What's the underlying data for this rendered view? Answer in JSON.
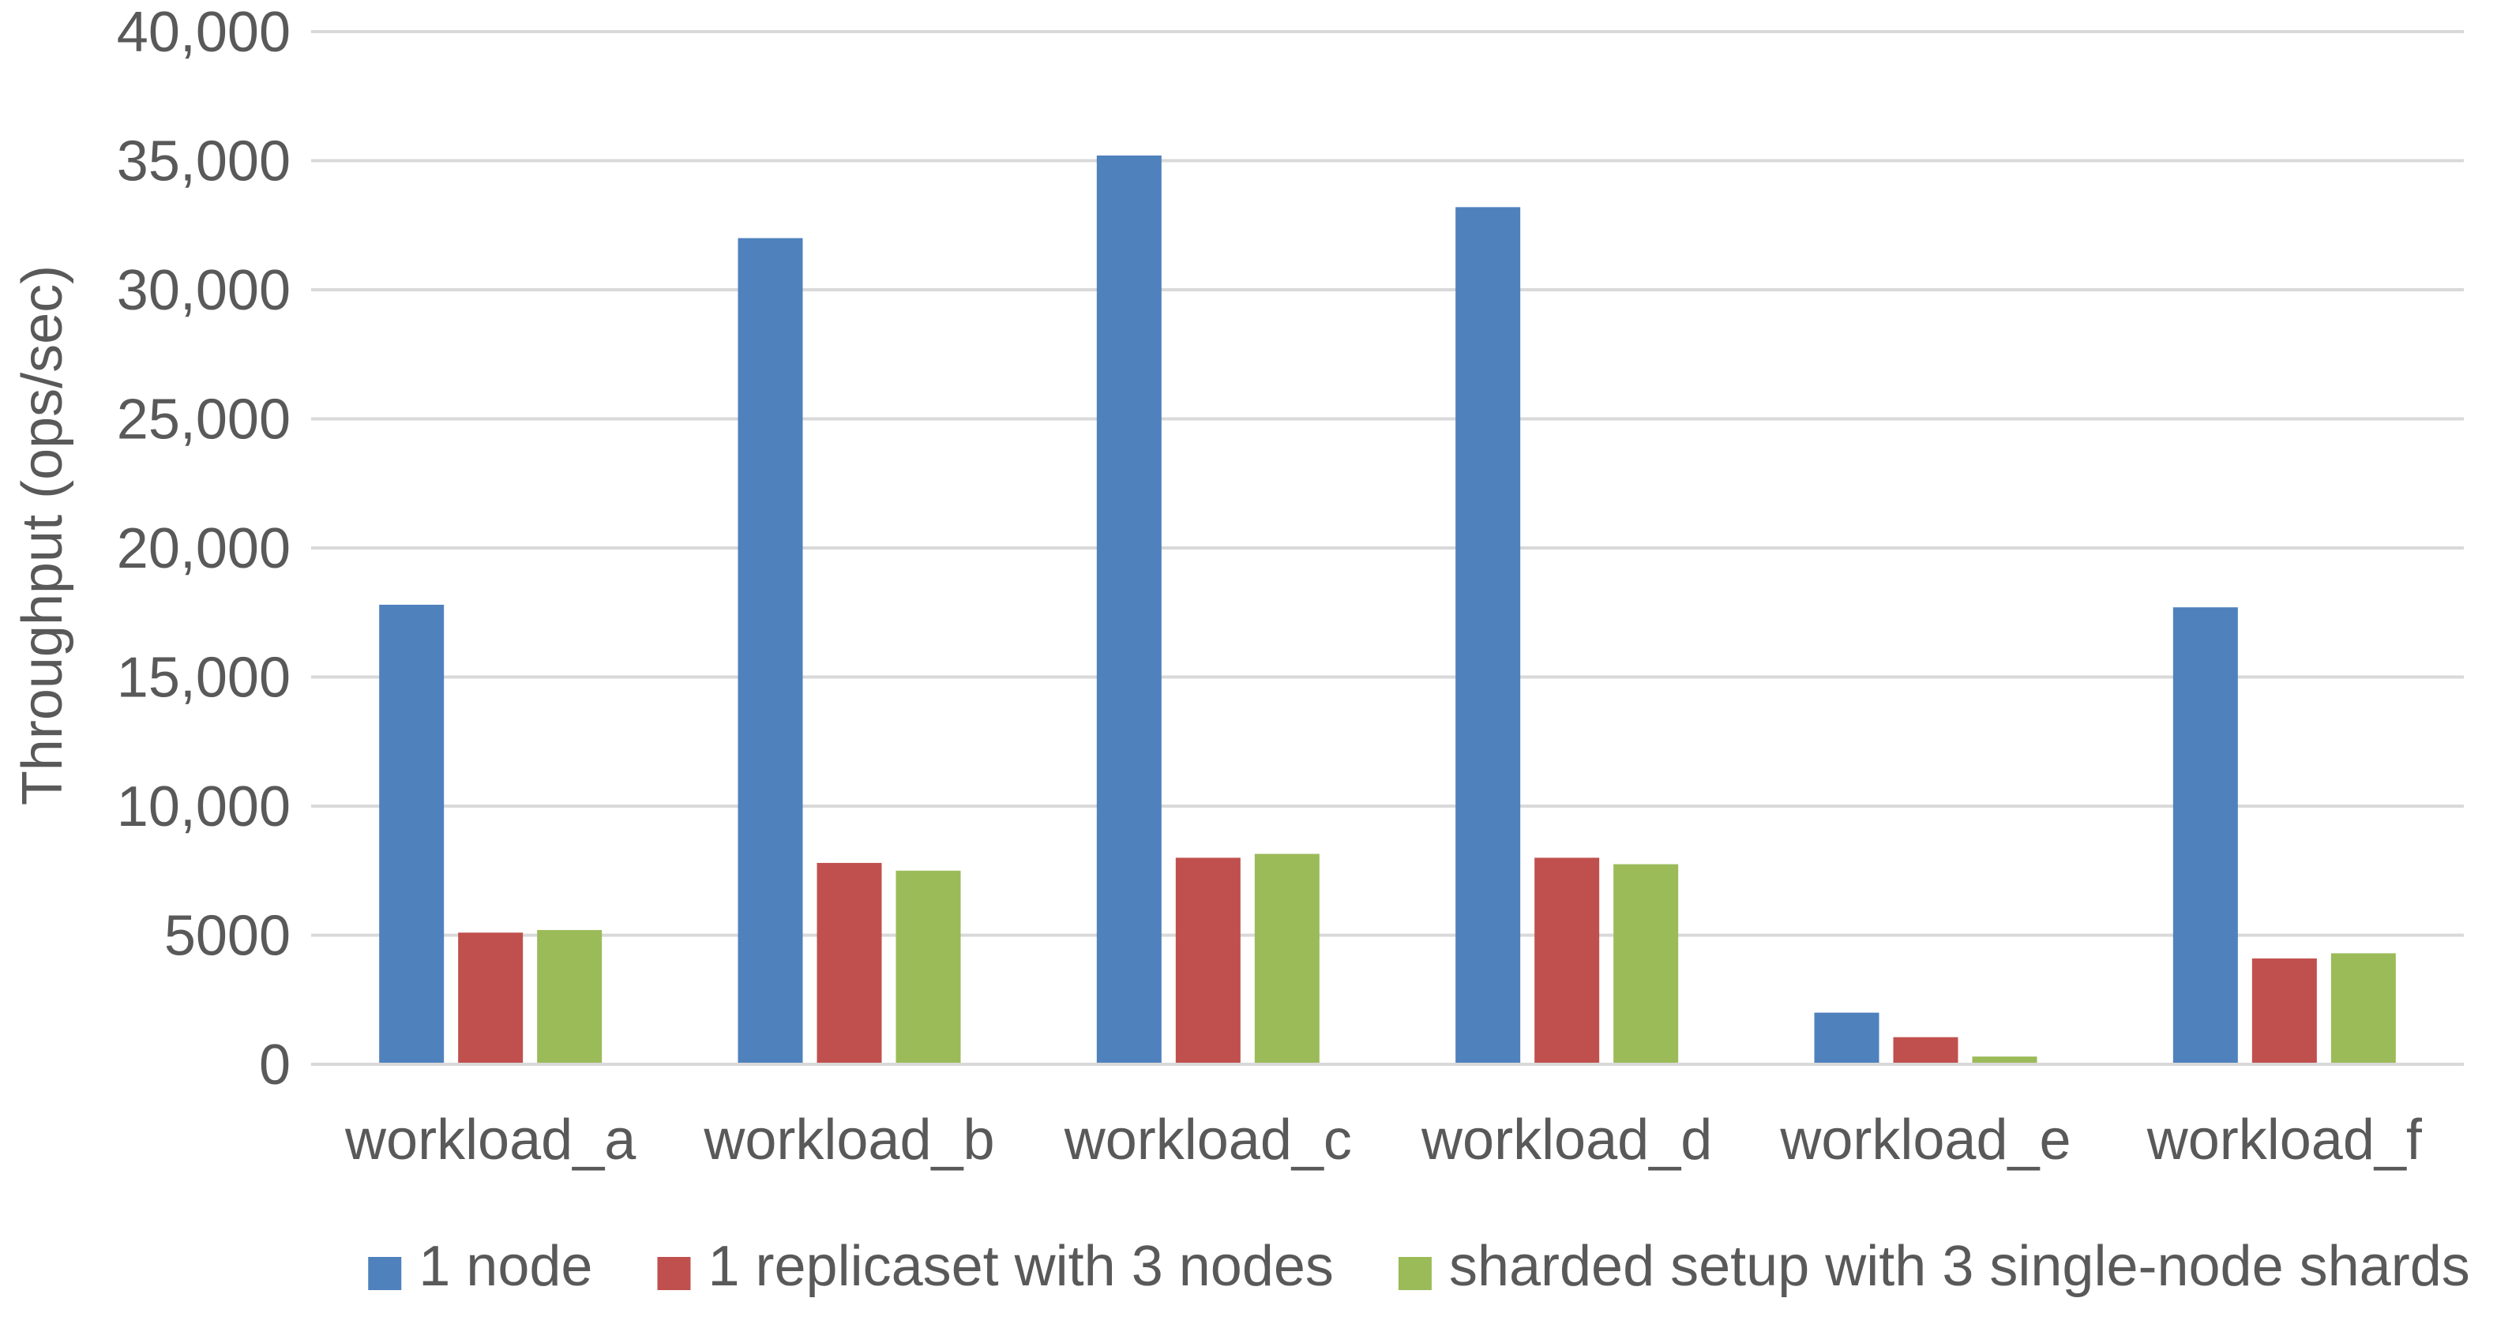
{
  "chart_data": {
    "type": "bar",
    "title": "",
    "xlabel": "",
    "ylabel": "Throughput (ops/sec)",
    "ylim": [
      0,
      40000
    ],
    "yticks": [
      0,
      5000,
      10000,
      15000,
      20000,
      25000,
      30000,
      35000,
      40000
    ],
    "ytick_labels": [
      "0",
      "5000",
      "10,000",
      "15,000",
      "20,000",
      "25,000",
      "30,000",
      "35,000",
      "40,000"
    ],
    "grid": true,
    "legend_position": "bottom",
    "categories": [
      "workload_a",
      "workload_b",
      "workload_c",
      "workload_d",
      "workload_e",
      "workload_f"
    ],
    "series": [
      {
        "name": "1 node",
        "color": "#4f81bd",
        "values": [
          17800,
          32000,
          35200,
          33200,
          2000,
          17700
        ]
      },
      {
        "name": "1 replicaset with 3 nodes",
        "color": "#c0504d",
        "values": [
          5100,
          7800,
          8000,
          8000,
          1050,
          4100
        ]
      },
      {
        "name": "sharded setup with 3 single-node shards",
        "color": "#9bbb59",
        "values": [
          5200,
          7500,
          8150,
          7750,
          300,
          4300
        ]
      }
    ]
  }
}
